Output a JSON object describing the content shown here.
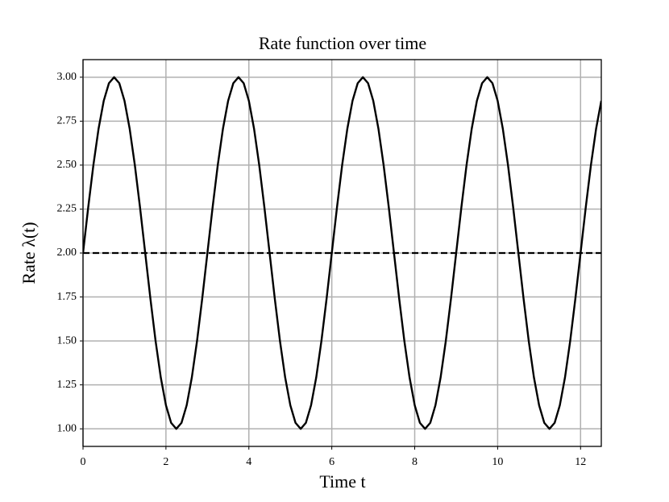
{
  "chart_data": {
    "type": "line",
    "title": "Rate function over time",
    "xlabel": "Time t",
    "ylabel": "Rate λ(t)",
    "x": [
      0,
      0.125,
      0.25,
      0.375,
      0.5,
      0.625,
      0.75,
      0.875,
      1,
      1.125,
      1.25,
      1.375,
      1.5,
      1.625,
      1.75,
      1.875,
      2,
      2.125,
      2.25,
      2.375,
      2.5,
      2.625,
      2.75,
      2.875,
      3,
      3.125,
      3.25,
      3.375,
      3.5,
      3.625,
      3.75,
      3.875,
      4,
      4.125,
      4.25,
      4.375,
      4.5,
      4.625,
      4.75,
      4.875,
      5,
      5.125,
      5.25,
      5.375,
      5.5,
      5.625,
      5.75,
      5.875,
      6,
      6.125,
      6.25,
      6.375,
      6.5,
      6.625,
      6.75,
      6.875,
      7,
      7.125,
      7.25,
      7.375,
      7.5,
      7.625,
      7.75,
      7.875,
      8,
      8.125,
      8.25,
      8.375,
      8.5,
      8.625,
      8.75,
      8.875,
      9,
      9.125,
      9.25,
      9.375,
      9.5,
      9.625,
      9.75,
      9.875,
      10,
      10.125,
      10.25,
      10.375,
      10.5,
      10.625,
      10.75,
      10.875,
      11,
      11.125,
      11.25,
      11.375,
      11.5,
      11.625,
      11.75,
      11.875,
      12,
      12.125,
      12.25,
      12.375,
      12.5
    ],
    "values": [
      2,
      2.259,
      2.5,
      2.707,
      2.866,
      2.966,
      3,
      2.966,
      2.866,
      2.707,
      2.5,
      2.259,
      2,
      1.741,
      1.5,
      1.293,
      1.134,
      1.034,
      1,
      1.034,
      1.134,
      1.293,
      1.5,
      1.741,
      2,
      2.259,
      2.5,
      2.707,
      2.866,
      2.966,
      3,
      2.966,
      2.866,
      2.707,
      2.5,
      2.259,
      2,
      1.741,
      1.5,
      1.293,
      1.134,
      1.034,
      1,
      1.034,
      1.134,
      1.293,
      1.5,
      1.741,
      2,
      2.259,
      2.5,
      2.707,
      2.866,
      2.966,
      3,
      2.966,
      2.866,
      2.707,
      2.5,
      2.259,
      2,
      1.741,
      1.5,
      1.293,
      1.134,
      1.034,
      1,
      1.034,
      1.134,
      1.293,
      1.5,
      1.741,
      2,
      2.259,
      2.5,
      2.707,
      2.866,
      2.966,
      3,
      2.966,
      2.866,
      2.707,
      2.5,
      2.259,
      2,
      1.741,
      1.5,
      1.293,
      1.134,
      1.034,
      1,
      1.034,
      1.134,
      1.293,
      1.5,
      1.741,
      2,
      2.259,
      2.5,
      2.707,
      2.866
    ],
    "color": "#000000",
    "hline": 2,
    "xlim": [
      0,
      12.5
    ],
    "ylim": [
      0.9,
      3.1
    ],
    "xticks": [
      0,
      2,
      4,
      6,
      8,
      10,
      12
    ],
    "yticks": [
      {
        "value": 1,
        "label": "1.00"
      },
      {
        "value": 1.25,
        "label": "1.25"
      },
      {
        "value": 1.5,
        "label": "1.50"
      },
      {
        "value": 1.75,
        "label": "1.75"
      },
      {
        "value": 2,
        "label": "2.00"
      },
      {
        "value": 2.25,
        "label": "2.25"
      },
      {
        "value": 2.5,
        "label": "2.50"
      },
      {
        "value": 2.75,
        "label": "2.75"
      },
      {
        "value": 3,
        "label": "3.00"
      }
    ],
    "grid": true
  }
}
